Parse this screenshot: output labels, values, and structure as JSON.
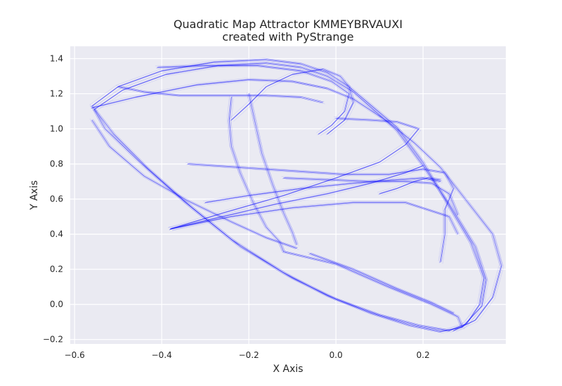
{
  "chart_data": {
    "type": "scatter",
    "title": "Quadratic Map Attractor KMMEYBRVAUXI",
    "subtitle": "created with PyStrange",
    "xlabel": "X Axis",
    "ylabel": "Y Axis",
    "xlim": [
      -0.61,
      0.39
    ],
    "ylim": [
      -0.225,
      1.47
    ],
    "xticks": [
      -0.6,
      -0.4,
      -0.2,
      0.0,
      0.2
    ],
    "xtick_labels": [
      "−0.6",
      "−0.4",
      "−0.2",
      "0.0",
      "0.2"
    ],
    "yticks": [
      -0.2,
      0.0,
      0.2,
      0.4,
      0.6,
      0.8,
      1.0,
      1.2,
      1.4
    ],
    "ytick_labels": [
      "−0.2",
      "0.0",
      "0.2",
      "0.4",
      "0.6",
      "0.8",
      "1.0",
      "1.2",
      "1.4"
    ],
    "grid": true,
    "background_color": "#eaeaf2",
    "point_color": "#0000ff",
    "series": [
      {
        "curves": [
          [
            [
              -0.56,
              1.13
            ],
            [
              -0.5,
              1.24
            ],
            [
              -0.4,
              1.33
            ],
            [
              -0.28,
              1.38
            ],
            [
              -0.16,
              1.395
            ],
            [
              -0.08,
              1.37
            ],
            [
              -0.02,
              1.32
            ],
            [
              0.03,
              1.24
            ],
            [
              0.14,
              1.01
            ],
            [
              0.2,
              0.81
            ],
            [
              0.25,
              0.6
            ],
            [
              0.31,
              0.35
            ],
            [
              0.34,
              0.15
            ],
            [
              0.33,
              0.0
            ],
            [
              0.3,
              -0.11
            ],
            [
              0.26,
              -0.15
            ],
            [
              0.19,
              -0.12
            ],
            [
              0.1,
              -0.06
            ],
            [
              0.0,
              0.03
            ],
            [
              -0.1,
              0.15
            ],
            [
              -0.22,
              0.33
            ],
            [
              -0.33,
              0.55
            ],
            [
              -0.43,
              0.77
            ],
            [
              -0.51,
              0.97
            ],
            [
              -0.56,
              1.13
            ]
          ],
          [
            [
              -0.555,
              1.11
            ],
            [
              -0.49,
              1.22
            ],
            [
              -0.39,
              1.31
            ],
            [
              -0.27,
              1.36
            ],
            [
              -0.16,
              1.375
            ],
            [
              -0.08,
              1.35
            ],
            [
              -0.02,
              1.3
            ],
            [
              0.04,
              1.21
            ],
            [
              0.14,
              0.99
            ],
            [
              0.2,
              0.79
            ],
            [
              0.26,
              0.57
            ],
            [
              0.32,
              0.33
            ],
            [
              0.345,
              0.14
            ],
            [
              0.335,
              -0.01
            ],
            [
              0.29,
              -0.13
            ],
            [
              0.24,
              -0.155
            ],
            [
              0.17,
              -0.12
            ],
            [
              0.08,
              -0.05
            ],
            [
              -0.02,
              0.05
            ],
            [
              -0.12,
              0.18
            ],
            [
              -0.24,
              0.37
            ],
            [
              -0.35,
              0.59
            ],
            [
              -0.45,
              0.81
            ],
            [
              -0.53,
              1.0
            ],
            [
              -0.555,
              1.11
            ]
          ],
          [
            [
              -0.56,
              1.12
            ],
            [
              -0.46,
              1.18
            ],
            [
              -0.32,
              1.25
            ],
            [
              -0.2,
              1.28
            ],
            [
              -0.1,
              1.27
            ],
            [
              -0.02,
              1.23
            ],
            [
              0.04,
              1.17
            ],
            [
              0.12,
              1.04
            ],
            [
              0.18,
              0.92
            ],
            [
              0.24,
              0.78
            ],
            [
              0.3,
              0.59
            ],
            [
              0.36,
              0.4
            ],
            [
              0.38,
              0.22
            ],
            [
              0.36,
              0.04
            ],
            [
              0.32,
              -0.09
            ],
            [
              0.27,
              -0.15
            ]
          ],
          [
            [
              -0.41,
              1.35
            ],
            [
              -0.3,
              1.36
            ],
            [
              -0.18,
              1.36
            ],
            [
              -0.08,
              1.33
            ],
            [
              -0.01,
              1.27
            ],
            [
              0.03,
              1.2
            ],
            [
              0.02,
              1.1
            ],
            [
              -0.01,
              1.02
            ],
            [
              -0.04,
              0.97
            ]
          ],
          [
            [
              -0.38,
              0.43
            ],
            [
              -0.26,
              0.5
            ],
            [
              -0.14,
              0.57
            ],
            [
              -0.02,
              0.63
            ],
            [
              0.08,
              0.69
            ],
            [
              0.16,
              0.75
            ],
            [
              0.2,
              0.79
            ]
          ],
          [
            [
              -0.38,
              0.43
            ],
            [
              -0.26,
              0.52
            ],
            [
              -0.12,
              0.62
            ],
            [
              0.0,
              0.72
            ],
            [
              0.1,
              0.81
            ],
            [
              0.16,
              0.91
            ],
            [
              0.19,
              1.0
            ],
            [
              0.14,
              1.04
            ],
            [
              0.08,
              1.05
            ],
            [
              0.0,
              1.06
            ]
          ],
          [
            [
              -0.24,
              1.18
            ],
            [
              -0.245,
              1.05
            ],
            [
              -0.24,
              0.9
            ],
            [
              -0.22,
              0.75
            ],
            [
              -0.19,
              0.58
            ],
            [
              -0.16,
              0.44
            ],
            [
              -0.13,
              0.36
            ],
            [
              -0.12,
              0.3
            ]
          ],
          [
            [
              -0.24,
              1.05
            ],
            [
              -0.2,
              1.14
            ],
            [
              -0.16,
              1.24
            ],
            [
              -0.1,
              1.31
            ],
            [
              -0.03,
              1.34
            ],
            [
              0.01,
              1.3
            ],
            [
              0.03,
              1.24
            ],
            [
              0.04,
              1.15
            ],
            [
              0.02,
              1.05
            ],
            [
              -0.02,
              0.97
            ]
          ],
          [
            [
              -0.2,
              1.2
            ],
            [
              -0.185,
              1.03
            ],
            [
              -0.17,
              0.86
            ],
            [
              -0.145,
              0.68
            ],
            [
              -0.12,
              0.52
            ],
            [
              -0.1,
              0.41
            ],
            [
              -0.09,
              0.34
            ]
          ],
          [
            [
              -0.3,
              0.58
            ],
            [
              -0.2,
              0.62
            ],
            [
              -0.08,
              0.66
            ],
            [
              0.04,
              0.69
            ],
            [
              0.14,
              0.71
            ],
            [
              0.2,
              0.72
            ],
            [
              0.24,
              0.7
            ]
          ],
          [
            [
              -0.34,
              0.8
            ],
            [
              -0.22,
              0.78
            ],
            [
              -0.1,
              0.76
            ],
            [
              0.02,
              0.74
            ],
            [
              0.12,
              0.74
            ],
            [
              0.2,
              0.77
            ],
            [
              0.25,
              0.75
            ],
            [
              0.27,
              0.66
            ],
            [
              0.25,
              0.54
            ],
            [
              0.25,
              0.4
            ],
            [
              0.24,
              0.24
            ]
          ],
          [
            [
              -0.12,
              0.72
            ],
            [
              -0.02,
              0.71
            ],
            [
              0.08,
              0.7
            ],
            [
              0.16,
              0.7
            ],
            [
              0.22,
              0.69
            ],
            [
              0.26,
              0.63
            ],
            [
              0.28,
              0.51
            ]
          ],
          [
            [
              0.1,
              0.63
            ],
            [
              0.14,
              0.66
            ],
            [
              0.18,
              0.7
            ],
            [
              0.21,
              0.72
            ],
            [
              0.24,
              0.71
            ]
          ],
          [
            [
              -0.09,
              0.32
            ],
            [
              -0.16,
              0.38
            ],
            [
              -0.24,
              0.47
            ],
            [
              -0.34,
              0.59
            ],
            [
              -0.44,
              0.73
            ],
            [
              -0.52,
              0.9
            ],
            [
              -0.56,
              1.05
            ]
          ],
          [
            [
              -0.12,
              0.3
            ],
            [
              0.0,
              0.23
            ],
            [
              0.12,
              0.1
            ],
            [
              0.22,
              0.0
            ],
            [
              0.28,
              -0.07
            ],
            [
              0.29,
              -0.13
            ]
          ],
          [
            [
              -0.06,
              0.29
            ],
            [
              0.04,
              0.2
            ],
            [
              0.14,
              0.09
            ],
            [
              0.22,
              0.01
            ],
            [
              0.27,
              -0.05
            ]
          ],
          [
            [
              -0.5,
              1.24
            ],
            [
              -0.44,
              1.21
            ],
            [
              -0.36,
              1.19
            ],
            [
              -0.26,
              1.19
            ],
            [
              -0.16,
              1.19
            ],
            [
              -0.08,
              1.18
            ],
            [
              -0.03,
              1.15
            ]
          ],
          [
            [
              -0.38,
              0.43
            ],
            [
              -0.24,
              0.5
            ],
            [
              -0.1,
              0.55
            ],
            [
              0.04,
              0.58
            ],
            [
              0.16,
              0.58
            ],
            [
              0.26,
              0.5
            ],
            [
              0.28,
              0.4
            ]
          ]
        ]
      }
    ]
  }
}
